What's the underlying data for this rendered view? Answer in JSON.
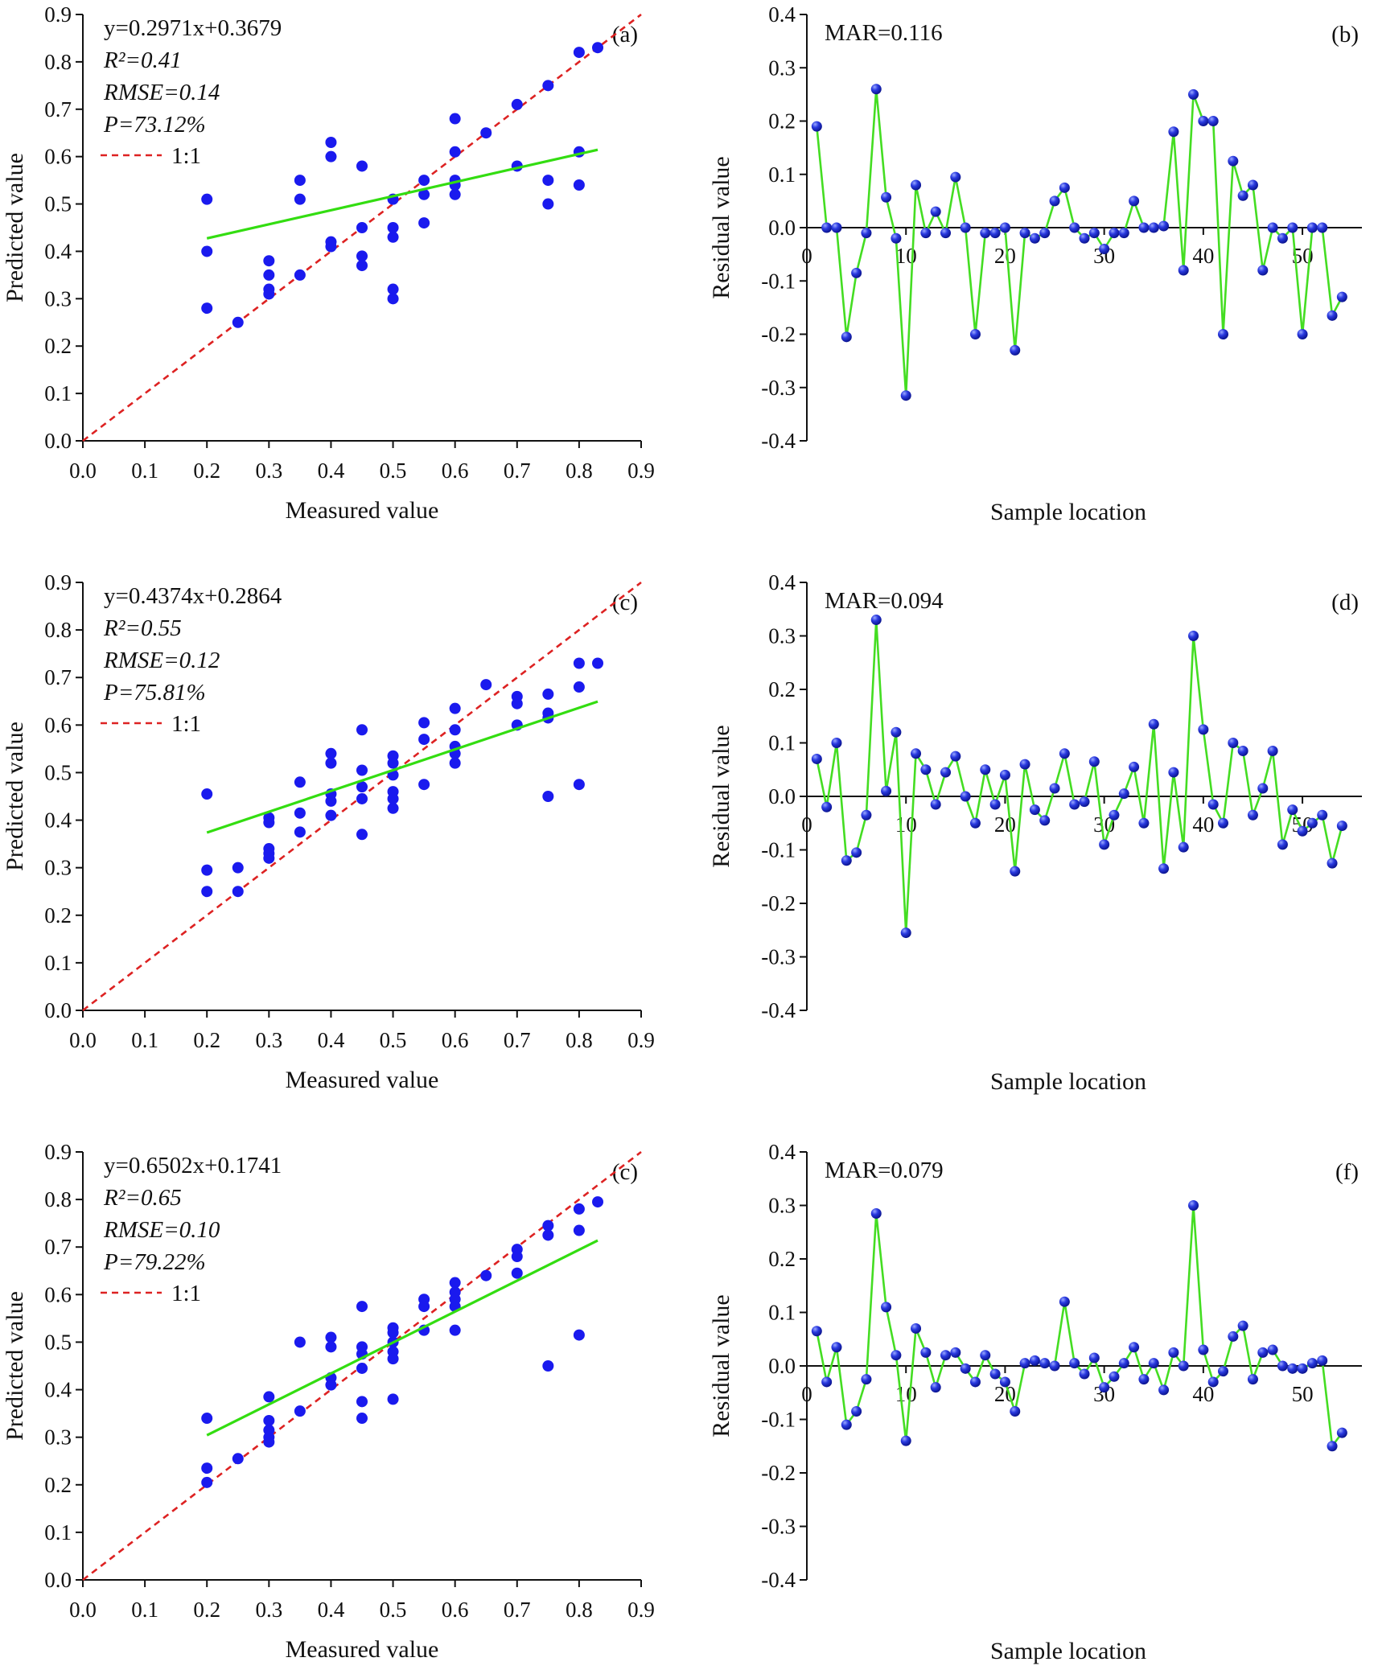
{
  "colors": {
    "point": "#1a1aee",
    "fit_line": "#33dd11",
    "identity_line": "#dd2222",
    "residual_line": "#44dd22",
    "residual_point": "#2233dd",
    "axis": "#111111"
  },
  "chart_data": [
    {
      "id": "a",
      "type": "scatter",
      "panel_label": "(a)",
      "xlabel": "Measured value",
      "ylabel": "Predicted value",
      "xlim": [
        0,
        0.9
      ],
      "ylim": [
        0,
        0.9
      ],
      "xticks": [
        "0.0",
        "0.1",
        "0.2",
        "0.3",
        "0.4",
        "0.5",
        "0.6",
        "0.7",
        "0.8",
        "0.9"
      ],
      "yticks": [
        "0.0",
        "0.1",
        "0.2",
        "0.3",
        "0.4",
        "0.5",
        "0.6",
        "0.7",
        "0.8",
        "0.9"
      ],
      "annotations": {
        "equation": "y=0.2971x+0.3679",
        "r2": "R²=0.41",
        "rmse": "RMSE=0.14",
        "p": "P=73.12%",
        "legend_identity": "1:1"
      },
      "fit": {
        "slope": 0.2971,
        "intercept": 0.3679,
        "x_range": [
          0.2,
          0.83
        ]
      },
      "identity": {
        "x_range": [
          0,
          0.9
        ]
      },
      "points": [
        [
          0.2,
          0.51
        ],
        [
          0.2,
          0.4
        ],
        [
          0.2,
          0.28
        ],
        [
          0.25,
          0.25
        ],
        [
          0.3,
          0.38
        ],
        [
          0.3,
          0.35
        ],
        [
          0.3,
          0.32
        ],
        [
          0.3,
          0.31
        ],
        [
          0.35,
          0.55
        ],
        [
          0.35,
          0.51
        ],
        [
          0.35,
          0.35
        ],
        [
          0.4,
          0.63
        ],
        [
          0.4,
          0.6
        ],
        [
          0.4,
          0.42
        ],
        [
          0.4,
          0.41
        ],
        [
          0.45,
          0.58
        ],
        [
          0.45,
          0.45
        ],
        [
          0.45,
          0.39
        ],
        [
          0.45,
          0.37
        ],
        [
          0.5,
          0.51
        ],
        [
          0.5,
          0.45
        ],
        [
          0.5,
          0.43
        ],
        [
          0.5,
          0.32
        ],
        [
          0.5,
          0.3
        ],
        [
          0.55,
          0.55
        ],
        [
          0.55,
          0.52
        ],
        [
          0.55,
          0.46
        ],
        [
          0.6,
          0.68
        ],
        [
          0.6,
          0.61
        ],
        [
          0.6,
          0.55
        ],
        [
          0.6,
          0.54
        ],
        [
          0.6,
          0.52
        ],
        [
          0.65,
          0.65
        ],
        [
          0.7,
          0.71
        ],
        [
          0.7,
          0.58
        ],
        [
          0.75,
          0.75
        ],
        [
          0.75,
          0.55
        ],
        [
          0.75,
          0.5
        ],
        [
          0.8,
          0.82
        ],
        [
          0.8,
          0.61
        ],
        [
          0.8,
          0.54
        ],
        [
          0.83,
          0.83
        ]
      ]
    },
    {
      "id": "b",
      "type": "line",
      "panel_label": "(b)",
      "xlabel": "Sample location",
      "ylabel": "Residual value",
      "xlim": [
        0,
        56
      ],
      "ylim": [
        -0.4,
        0.4
      ],
      "xticks": [
        "0",
        "10",
        "20",
        "30",
        "40",
        "50"
      ],
      "yticks": [
        "-0.4",
        "-0.3",
        "-0.2",
        "-0.1",
        "0.0",
        "0.1",
        "0.2",
        "0.3",
        "0.4"
      ],
      "annotations": {
        "mar": "MAR=0.116"
      },
      "residuals": [
        0.19,
        0.0,
        0.0,
        -0.205,
        -0.085,
        -0.01,
        0.26,
        0.057,
        -0.02,
        -0.315,
        0.08,
        -0.01,
        0.03,
        -0.01,
        0.095,
        0.0,
        -0.2,
        -0.01,
        -0.01,
        0.0,
        -0.23,
        -0.01,
        -0.02,
        -0.01,
        0.05,
        0.075,
        0.0,
        -0.02,
        -0.01,
        -0.04,
        -0.01,
        -0.01,
        0.05,
        0.0,
        0.0,
        0.003,
        0.18,
        -0.08,
        0.25,
        0.2,
        0.2,
        -0.2,
        0.125,
        0.06,
        0.08,
        -0.08,
        0.0,
        -0.02,
        0.0,
        -0.2,
        0.0,
        0.0,
        -0.165,
        -0.13
      ]
    },
    {
      "id": "c",
      "type": "scatter",
      "panel_label": "(c)",
      "xlabel": "Measured value",
      "ylabel": "Predicted value",
      "xlim": [
        0,
        0.9
      ],
      "ylim": [
        0,
        0.9
      ],
      "xticks": [
        "0.0",
        "0.1",
        "0.2",
        "0.3",
        "0.4",
        "0.5",
        "0.6",
        "0.7",
        "0.8",
        "0.9"
      ],
      "yticks": [
        "0.0",
        "0.1",
        "0.2",
        "0.3",
        "0.4",
        "0.5",
        "0.6",
        "0.7",
        "0.8",
        "0.9"
      ],
      "annotations": {
        "equation": "y=0.4374x+0.2864",
        "r2": "R²=0.55",
        "rmse": "RMSE=0.12",
        "p": "P=75.81%",
        "legend_identity": "1:1"
      },
      "fit": {
        "slope": 0.4374,
        "intercept": 0.2864,
        "x_range": [
          0.2,
          0.83
        ]
      },
      "identity": {
        "x_range": [
          0,
          0.9
        ]
      },
      "points": [
        [
          0.2,
          0.455
        ],
        [
          0.2,
          0.295
        ],
        [
          0.2,
          0.25
        ],
        [
          0.25,
          0.3
        ],
        [
          0.25,
          0.25
        ],
        [
          0.3,
          0.405
        ],
        [
          0.3,
          0.395
        ],
        [
          0.3,
          0.34
        ],
        [
          0.3,
          0.33
        ],
        [
          0.3,
          0.32
        ],
        [
          0.35,
          0.48
        ],
        [
          0.35,
          0.415
        ],
        [
          0.35,
          0.375
        ],
        [
          0.4,
          0.54
        ],
        [
          0.4,
          0.52
        ],
        [
          0.4,
          0.455
        ],
        [
          0.4,
          0.44
        ],
        [
          0.4,
          0.41
        ],
        [
          0.45,
          0.59
        ],
        [
          0.45,
          0.505
        ],
        [
          0.45,
          0.47
        ],
        [
          0.45,
          0.445
        ],
        [
          0.45,
          0.37
        ],
        [
          0.5,
          0.535
        ],
        [
          0.5,
          0.52
        ],
        [
          0.5,
          0.495
        ],
        [
          0.5,
          0.46
        ],
        [
          0.5,
          0.445
        ],
        [
          0.5,
          0.425
        ],
        [
          0.55,
          0.605
        ],
        [
          0.55,
          0.57
        ],
        [
          0.55,
          0.475
        ],
        [
          0.6,
          0.635
        ],
        [
          0.6,
          0.59
        ],
        [
          0.6,
          0.555
        ],
        [
          0.6,
          0.54
        ],
        [
          0.6,
          0.52
        ],
        [
          0.65,
          0.685
        ],
        [
          0.7,
          0.66
        ],
        [
          0.7,
          0.645
        ],
        [
          0.7,
          0.6
        ],
        [
          0.75,
          0.665
        ],
        [
          0.75,
          0.625
        ],
        [
          0.75,
          0.615
        ],
        [
          0.75,
          0.45
        ],
        [
          0.8,
          0.73
        ],
        [
          0.8,
          0.68
        ],
        [
          0.8,
          0.475
        ],
        [
          0.83,
          0.73
        ]
      ]
    },
    {
      "id": "d",
      "type": "line",
      "panel_label": "(d)",
      "xlabel": "Sample location",
      "ylabel": "Residual value",
      "xlim": [
        0,
        56
      ],
      "ylim": [
        -0.4,
        0.4
      ],
      "xticks": [
        "0",
        "10",
        "20",
        "30",
        "40",
        "50"
      ],
      "yticks": [
        "-0.4",
        "-0.3",
        "-0.2",
        "-0.1",
        "0.0",
        "0.1",
        "0.2",
        "0.3",
        "0.4"
      ],
      "annotations": {
        "mar": "MAR=0.094"
      },
      "residuals": [
        0.07,
        -0.02,
        0.1,
        -0.12,
        -0.105,
        -0.035,
        0.33,
        0.01,
        0.12,
        -0.255,
        0.08,
        0.05,
        -0.015,
        0.045,
        0.075,
        0.0,
        -0.05,
        0.05,
        -0.015,
        0.04,
        -0.14,
        0.06,
        -0.025,
        -0.045,
        0.015,
        0.08,
        -0.015,
        -0.01,
        0.065,
        -0.09,
        -0.035,
        0.005,
        0.055,
        -0.05,
        0.135,
        -0.135,
        0.045,
        -0.095,
        0.3,
        0.125,
        -0.015,
        -0.05,
        0.1,
        0.085,
        -0.035,
        0.015,
        0.085,
        -0.09,
        -0.025,
        -0.065,
        -0.05,
        -0.035,
        -0.125,
        -0.055
      ]
    },
    {
      "id": "e",
      "type": "scatter",
      "panel_label": "(c)",
      "xlabel": "Measured value",
      "ylabel": "Predicted value",
      "xlim": [
        0,
        0.9
      ],
      "ylim": [
        0,
        0.9
      ],
      "xticks": [
        "0.0",
        "0.1",
        "0.2",
        "0.3",
        "0.4",
        "0.5",
        "0.6",
        "0.7",
        "0.8",
        "0.9"
      ],
      "yticks": [
        "0.0",
        "0.1",
        "0.2",
        "0.3",
        "0.4",
        "0.5",
        "0.6",
        "0.7",
        "0.8",
        "0.9"
      ],
      "annotations": {
        "equation": "y=0.6502x+0.1741",
        "r2": "R²=0.65",
        "rmse": "RMSE=0.10",
        "p": "P=79.22%",
        "legend_identity": "1:1"
      },
      "fit": {
        "slope": 0.6502,
        "intercept": 0.1741,
        "x_range": [
          0.2,
          0.83
        ]
      },
      "identity": {
        "x_range": [
          0,
          0.9
        ]
      },
      "points": [
        [
          0.2,
          0.34
        ],
        [
          0.2,
          0.235
        ],
        [
          0.2,
          0.205
        ],
        [
          0.25,
          0.255
        ],
        [
          0.3,
          0.385
        ],
        [
          0.3,
          0.335
        ],
        [
          0.3,
          0.315
        ],
        [
          0.3,
          0.3
        ],
        [
          0.3,
          0.29
        ],
        [
          0.35,
          0.5
        ],
        [
          0.35,
          0.355
        ],
        [
          0.4,
          0.51
        ],
        [
          0.4,
          0.49
        ],
        [
          0.4,
          0.425
        ],
        [
          0.4,
          0.41
        ],
        [
          0.45,
          0.575
        ],
        [
          0.45,
          0.49
        ],
        [
          0.45,
          0.475
        ],
        [
          0.45,
          0.445
        ],
        [
          0.45,
          0.375
        ],
        [
          0.45,
          0.34
        ],
        [
          0.5,
          0.53
        ],
        [
          0.5,
          0.52
        ],
        [
          0.5,
          0.5
        ],
        [
          0.5,
          0.48
        ],
        [
          0.5,
          0.465
        ],
        [
          0.5,
          0.38
        ],
        [
          0.55,
          0.59
        ],
        [
          0.55,
          0.575
        ],
        [
          0.55,
          0.525
        ],
        [
          0.6,
          0.625
        ],
        [
          0.6,
          0.605
        ],
        [
          0.6,
          0.59
        ],
        [
          0.6,
          0.575
        ],
        [
          0.6,
          0.525
        ],
        [
          0.65,
          0.64
        ],
        [
          0.7,
          0.695
        ],
        [
          0.7,
          0.68
        ],
        [
          0.7,
          0.645
        ],
        [
          0.75,
          0.745
        ],
        [
          0.75,
          0.725
        ],
        [
          0.75,
          0.45
        ],
        [
          0.8,
          0.78
        ],
        [
          0.8,
          0.735
        ],
        [
          0.8,
          0.515
        ],
        [
          0.83,
          0.795
        ]
      ]
    },
    {
      "id": "f",
      "type": "line",
      "panel_label": "(f)",
      "xlabel": "Sample location",
      "ylabel": "Residual value",
      "xlim": [
        0,
        56
      ],
      "ylim": [
        -0.4,
        0.4
      ],
      "xticks": [
        "0",
        "10",
        "20",
        "30",
        "40",
        "50"
      ],
      "yticks": [
        "-0.4",
        "-0.3",
        "-0.2",
        "-0.1",
        "0.0",
        "0.1",
        "0.2",
        "0.3",
        "0.4"
      ],
      "annotations": {
        "mar": "MAR=0.079"
      },
      "residuals": [
        0.065,
        -0.03,
        0.035,
        -0.11,
        -0.085,
        -0.025,
        0.285,
        0.11,
        0.02,
        -0.14,
        0.07,
        0.025,
        -0.04,
        0.02,
        0.025,
        -0.005,
        -0.03,
        0.02,
        -0.015,
        -0.03,
        -0.085,
        0.005,
        0.01,
        0.005,
        0.0,
        0.12,
        0.005,
        -0.015,
        0.015,
        -0.04,
        -0.02,
        0.005,
        0.035,
        -0.025,
        0.005,
        -0.045,
        0.025,
        0.0,
        0.3,
        0.03,
        -0.03,
        -0.01,
        0.055,
        0.075,
        -0.025,
        0.025,
        0.03,
        0.0,
        -0.005,
        -0.005,
        0.005,
        0.01,
        -0.15,
        -0.125
      ]
    }
  ]
}
